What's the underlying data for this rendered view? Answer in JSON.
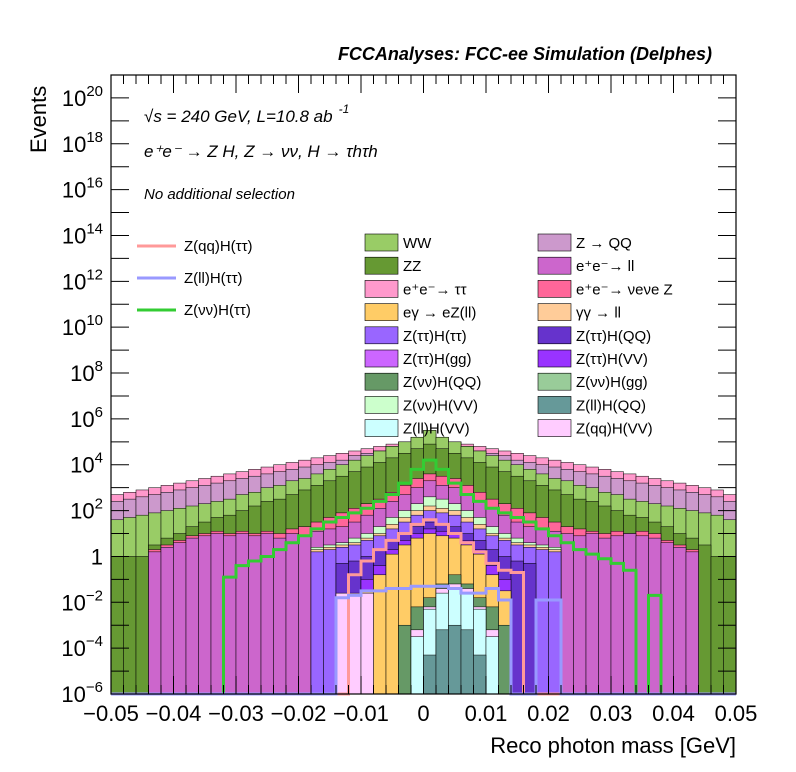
{
  "chart_data": {
    "type": "histogram",
    "header": "FCCAnalyses: FCC-ee Simulation (Delphes)",
    "xlabel": "Reco photon mass [GeV]",
    "ylabel": "Events",
    "xlim": [
      -0.05,
      0.05
    ],
    "ylim": [
      1e-06,
      1e+21
    ],
    "yscale": "log",
    "x_ticks": [
      "−0.05",
      "−0.04",
      "−0.03",
      "−0.02",
      "−0.01",
      "0",
      "0.01",
      "0.02",
      "0.03",
      "0.04",
      "0.05"
    ],
    "y_ticks": [
      {
        "base": "10",
        "exp": "−6"
      },
      {
        "base": "10",
        "exp": "−4"
      },
      {
        "base": "10",
        "exp": "−2"
      },
      {
        "base": "1",
        "exp": ""
      },
      {
        "base": "10",
        "exp": "2"
      },
      {
        "base": "10",
        "exp": "4"
      },
      {
        "base": "10",
        "exp": "6"
      },
      {
        "base": "10",
        "exp": "8"
      },
      {
        "base": "10",
        "exp": "10"
      },
      {
        "base": "10",
        "exp": "12"
      },
      {
        "base": "10",
        "exp": "14"
      },
      {
        "base": "10",
        "exp": "16"
      },
      {
        "base": "10",
        "exp": "18"
      },
      {
        "base": "10",
        "exp": "20"
      }
    ],
    "info_lines": {
      "energy": "√s = 240 GeV, L=10.8 ab",
      "energy_exp": "-1",
      "process": "e⁺e⁻ → Z H, Z → νν, H → τhτh",
      "selection": "No additional selection"
    },
    "signal_legend": [
      {
        "name": "Z(qq)H(ττ)",
        "color": "#ff9999"
      },
      {
        "name": "Z(ll)H(ττ)",
        "color": "#9999ff"
      },
      {
        "name": "Z(νν)H(ττ)",
        "color": "#33cc33"
      }
    ],
    "background_legend": [
      {
        "name": "WW",
        "color": "#99cc66"
      },
      {
        "name": "Z → QQ",
        "color": "#cc99cc"
      },
      {
        "name": "ZZ",
        "color": "#669933"
      },
      {
        "name": "e⁺e⁻→ ll",
        "color": "#cc66cc"
      },
      {
        "name": "e⁺e⁻→ ττ",
        "color": "#ff99cc"
      },
      {
        "name": "e⁺e⁻→ νeνe Z",
        "color": "#ff6699"
      },
      {
        "name": "eγ → eZ(ll)",
        "color": "#ffcc66"
      },
      {
        "name": "γγ → ll",
        "color": "#ffcc99"
      },
      {
        "name": "Z(ττ)H(ττ)",
        "color": "#9966ff"
      },
      {
        "name": "Z(ττ)H(QQ)",
        "color": "#6633cc"
      },
      {
        "name": "Z(ττ)H(gg)",
        "color": "#cc66ff"
      },
      {
        "name": "Z(ττ)H(VV)",
        "color": "#9933ff"
      },
      {
        "name": "Z(νν)H(QQ)",
        "color": "#669966"
      },
      {
        "name": "Z(νν)H(gg)",
        "color": "#99cc99"
      },
      {
        "name": "Z(νν)H(VV)",
        "color": "#ccffcc"
      },
      {
        "name": "Z(ll)H(QQ)",
        "color": "#669999"
      },
      {
        "name": "Z(ll)H(VV)",
        "color": "#ccffff"
      },
      {
        "name": "Z(qq)H(VV)",
        "color": "#ffccff"
      }
    ],
    "bin_edges_range": [
      -0.05,
      0.05
    ],
    "n_bins": 50,
    "stack_layers": [
      {
        "name": "Z(ll)H(QQ)",
        "color": "#669999",
        "log10_top": [
          -6,
          -6,
          -6,
          -6,
          -6,
          -6,
          -6,
          -6,
          -6,
          -6,
          -6,
          -6,
          -6,
          -6,
          -6,
          -6,
          -6,
          -6,
          -6,
          -6,
          -6,
          -6,
          -6,
          -6,
          -6,
          -4.3,
          -3.2,
          -3,
          -3.2,
          -4.3,
          -6,
          -6,
          -6,
          -6,
          -6,
          -6,
          -6,
          -6,
          -6,
          -6,
          -6,
          -6,
          -6,
          -6,
          -6,
          -6,
          -6,
          -6,
          -6,
          -6
        ]
      },
      {
        "name": "Z(ll)H(VV)",
        "color": "#ccffff",
        "log10_top": [
          -6,
          -6,
          -6,
          -6,
          -6,
          -6,
          -6,
          -6,
          -6,
          -6,
          -6,
          -6,
          -6,
          -6,
          -6,
          -6,
          -6,
          -6,
          -6,
          -6,
          -6,
          -6,
          -6,
          -6,
          -3.5,
          -2.3,
          -1.6,
          -1.4,
          -1.6,
          -2.3,
          -3.5,
          -6,
          -6,
          -6,
          -6,
          -6,
          -6,
          -6,
          -6,
          -6,
          -6,
          -6,
          -6,
          -6,
          -6,
          -6,
          -6,
          -6,
          -6,
          -6
        ]
      },
      {
        "name": "Z(qq)H(VV)",
        "color": "#ffccff",
        "log10_top": [
          -6,
          -6,
          -6,
          -6,
          -6,
          -6,
          -6,
          -6,
          -6,
          -6,
          -6,
          -6,
          -6,
          -6,
          -6,
          -6,
          -6,
          -6,
          -1.6,
          -1.6,
          -1.6,
          -6,
          -6,
          -6,
          -3.2,
          -2.2,
          -1.4,
          -1.2,
          -1.4,
          -2.2,
          -3.2,
          -6,
          -6,
          -6,
          -6,
          -6,
          -6,
          -6,
          -6,
          -6,
          -6,
          -6,
          -6,
          -6,
          -6,
          -6,
          -6,
          -6,
          -6,
          -6
        ]
      },
      {
        "name": "Z(νν)H(QQ)",
        "color": "#669966",
        "log10_top": [
          -6,
          -6,
          -6,
          -6,
          -6,
          -6,
          -6,
          -6,
          -6,
          -6,
          -6,
          -6,
          -6,
          -6,
          -6,
          -6,
          -6,
          -6,
          -6,
          -6,
          -6,
          -6,
          -6,
          -3,
          -2.2,
          -1.8,
          -1.2,
          -0.8,
          -1.2,
          -1.8,
          -2.2,
          -3,
          -6,
          -6,
          -6,
          -6,
          -6,
          -6,
          -6,
          -6,
          -6,
          -6,
          -6,
          -6,
          -6,
          -6,
          -6,
          -6,
          -6,
          -6
        ]
      },
      {
        "name": "eγ → eZ(ll)",
        "color": "#ffcc66",
        "log10_top": [
          -6,
          -6,
          -6,
          -6,
          -6,
          -6,
          -6,
          -6,
          -6,
          -6,
          -6,
          -6,
          -6,
          -6,
          -6,
          -6,
          -6,
          -6,
          -6,
          -6,
          -1.5,
          -0.8,
          0.1,
          0.5,
          0.8,
          1.0,
          0.9,
          0.8,
          0.5,
          0.1,
          -0.8,
          -1.5,
          -6,
          -6,
          -6,
          -6,
          -6,
          -6,
          -6,
          -6,
          -6,
          -6,
          -6,
          -6,
          -6,
          -6,
          -6,
          -6,
          -6,
          -6
        ]
      },
      {
        "name": "Z(ττ)H(VV)",
        "color": "#9933ff",
        "log10_top": [
          -6,
          -6,
          -6,
          -6,
          -6,
          -6,
          -6,
          -6,
          -6,
          -6,
          -6,
          -6,
          -6,
          -6,
          -6,
          -6,
          -6,
          -6,
          -6,
          -6,
          -1.0,
          -0.4,
          0.3,
          0.7,
          1.0,
          1.2,
          1.1,
          1.0,
          0.7,
          0.3,
          -0.4,
          -1.0,
          -6,
          -6,
          -6,
          -6,
          -6,
          -6,
          -6,
          -6,
          -6,
          -6,
          -6,
          -6,
          -6,
          -6,
          -6,
          -6,
          -6,
          -6
        ]
      },
      {
        "name": "Z(ττ)H(QQ)",
        "color": "#6633cc",
        "log10_top": [
          -6,
          -6,
          -6,
          -6,
          -6,
          -6,
          -6,
          -6,
          -6,
          -6,
          -6,
          -6,
          -6,
          -6,
          -6,
          -6,
          -6,
          -6,
          -0.3,
          -0.2,
          0,
          0.3,
          0.7,
          1.0,
          1.3,
          1.5,
          1.4,
          1.3,
          1.0,
          0.7,
          0.3,
          0,
          -0.2,
          -0.3,
          -6,
          -6,
          -6,
          -6,
          -6,
          -6,
          -6,
          -6,
          -6,
          -6,
          -6,
          -6,
          -6,
          -6,
          -6,
          -6
        ]
      },
      {
        "name": "Z(ττ)H(ττ)",
        "color": "#9966ff",
        "log10_top": [
          -6,
          -6,
          -6,
          -6,
          -6,
          -6,
          -6,
          -6,
          -6,
          -6,
          -6,
          -6,
          -6,
          -6,
          -6,
          -6,
          0.2,
          0.3,
          0.4,
          0.5,
          0.7,
          0.9,
          1.2,
          1.5,
          1.8,
          2.0,
          1.9,
          1.8,
          1.5,
          1.2,
          0.9,
          0.7,
          0.5,
          0.4,
          0.3,
          0.2,
          -6,
          -6,
          -6,
          -6,
          -6,
          -6,
          -6,
          -6,
          -6,
          -6,
          -6,
          -6,
          -6,
          -6
        ]
      },
      {
        "name": "γγ → ll",
        "color": "#ffcc99",
        "log10_top": [
          -6,
          -6,
          -6,
          -6,
          -6,
          -6,
          -6,
          -6,
          -6,
          -6,
          -6,
          -6,
          -6,
          -6,
          -6,
          -6,
          0.3,
          0.4,
          0.5,
          0.6,
          0.8,
          1.0,
          1.4,
          1.7,
          2.0,
          2.2,
          2.1,
          2.0,
          1.7,
          1.4,
          1.0,
          0.8,
          0.6,
          0.5,
          0.4,
          0.3,
          -6,
          -6,
          -6,
          -6,
          -6,
          -6,
          -6,
          -6,
          -6,
          -6,
          -6,
          -6,
          -6,
          -6
        ]
      },
      {
        "name": "Z(νν)H(VV)",
        "color": "#ccffcc",
        "log10_top": [
          -6,
          -6,
          -6,
          -6,
          -6,
          -6,
          -6,
          -6,
          -6,
          -6,
          -6,
          -6,
          -6,
          -6,
          -6,
          -6,
          0.4,
          0.5,
          0.6,
          0.8,
          1.0,
          1.3,
          1.7,
          2.0,
          2.3,
          2.6,
          2.5,
          2.3,
          2.0,
          1.7,
          1.3,
          1.0,
          0.8,
          0.6,
          0.5,
          0.4,
          -6,
          -6,
          -6,
          -6,
          -6,
          -6,
          -6,
          -6,
          -6,
          -6,
          -6,
          -6,
          -6,
          -6
        ]
      },
      {
        "name": "e⁺e⁻→ ll",
        "color": "#cc66cc",
        "log10_top": [
          -6,
          -6,
          -6,
          0.2,
          0.4,
          0.6,
          0.8,
          0.9,
          1.0,
          0.9,
          1.0,
          0.9,
          1.0,
          0.8,
          1.0,
          0.9,
          1.1,
          1.2,
          1.3,
          1.5,
          1.8,
          2.1,
          2.4,
          2.7,
          3.0,
          3.3,
          3.1,
          3.0,
          2.7,
          2.4,
          2.1,
          1.8,
          1.5,
          1.3,
          1.2,
          1.1,
          1.0,
          0.9,
          1.0,
          0.8,
          0.9,
          1.0,
          0.9,
          0.8,
          0.6,
          0.4,
          0.2,
          -6,
          -6,
          -6
        ]
      },
      {
        "name": "e⁺e⁻→ νeνe Z",
        "color": "#ff6699",
        "log10_top": [
          -6,
          -6,
          -6,
          0.3,
          0.5,
          0.7,
          0.9,
          1.0,
          1.1,
          1.0,
          1.1,
          1.0,
          1.1,
          1.0,
          1.2,
          1.3,
          1.5,
          1.7,
          1.9,
          2.1,
          2.3,
          2.5,
          2.8,
          3.1,
          3.4,
          3.6,
          3.5,
          3.4,
          3.1,
          2.8,
          2.5,
          2.3,
          2.1,
          1.9,
          1.7,
          1.5,
          1.3,
          1.2,
          1.1,
          1.0,
          1.1,
          1.0,
          1.1,
          1.0,
          0.7,
          0.5,
          0.3,
          -6,
          -6,
          -6
        ]
      },
      {
        "name": "ZZ",
        "color": "#669933",
        "log10_top": [
          0,
          0,
          0,
          0.5,
          0.8,
          1.0,
          1.3,
          1.5,
          1.7,
          1.8,
          2.0,
          2.2,
          2.4,
          2.5,
          2.7,
          2.9,
          3.1,
          3.3,
          3.5,
          3.7,
          3.9,
          4.1,
          4.3,
          4.5,
          4.7,
          4.9,
          4.7,
          4.5,
          4.3,
          4.1,
          3.9,
          3.7,
          3.5,
          3.3,
          3.1,
          2.9,
          2.7,
          2.5,
          2.4,
          2.2,
          2.0,
          1.8,
          1.7,
          1.5,
          1.3,
          1.0,
          0.8,
          0.5,
          0,
          0
        ]
      },
      {
        "name": "WW",
        "color": "#99cc66",
        "log10_top": [
          1.6,
          1.7,
          1.8,
          1.9,
          2.0,
          2.1,
          2.2,
          2.3,
          2.4,
          2.5,
          2.7,
          2.8,
          3.0,
          3.1,
          3.3,
          3.4,
          3.6,
          3.8,
          4.0,
          4.2,
          4.4,
          4.6,
          4.8,
          5.0,
          5.2,
          5.5,
          5.2,
          5.0,
          4.8,
          4.6,
          4.4,
          4.2,
          4.0,
          3.8,
          3.6,
          3.4,
          3.3,
          3.1,
          3.0,
          2.8,
          2.7,
          2.5,
          2.4,
          2.3,
          2.2,
          2.1,
          2.0,
          1.9,
          1.8,
          1.6
        ]
      },
      {
        "name": "Z → QQ",
        "color": "#cc99cc",
        "log10_top": [
          2.4,
          2.5,
          2.6,
          2.7,
          2.8,
          2.9,
          3.0,
          3.1,
          3.2,
          3.3,
          3.4,
          3.5,
          3.6,
          3.7,
          3.8,
          3.9,
          4.0,
          4.1,
          4.2,
          4.4,
          4.5,
          4.6,
          4.8,
          5.0,
          5.2,
          5.5,
          5.2,
          5.0,
          4.8,
          4.6,
          4.5,
          4.4,
          4.2,
          4.1,
          4.0,
          3.9,
          3.8,
          3.7,
          3.6,
          3.5,
          3.4,
          3.3,
          3.2,
          3.1,
          3.0,
          2.9,
          2.8,
          2.7,
          2.6,
          2.4
        ]
      },
      {
        "name": "e⁺e⁻→ ττ",
        "color": "#ff99cc",
        "log10_top": [
          2.7,
          2.8,
          2.9,
          3.0,
          3.1,
          3.2,
          3.3,
          3.4,
          3.5,
          3.6,
          3.7,
          3.8,
          3.9,
          4.0,
          4.1,
          4.2,
          4.3,
          4.4,
          4.5,
          4.6,
          4.7,
          4.8,
          4.9,
          5.0,
          5.1,
          5.2,
          5.1,
          5.0,
          4.9,
          4.8,
          4.7,
          4.6,
          4.5,
          4.4,
          4.3,
          4.2,
          4.1,
          4.0,
          3.9,
          3.8,
          3.7,
          3.6,
          3.5,
          3.4,
          3.3,
          3.2,
          3.1,
          3.0,
          2.9,
          2.7
        ]
      }
    ],
    "signal_lines": [
      {
        "name": "Z(νν)H(ττ)",
        "color": "#33cc33",
        "log10_value": [
          -6,
          -6,
          -6,
          -6,
          -6,
          -6,
          -6,
          -6,
          -6,
          -0.9,
          -0.4,
          -0.2,
          0,
          0.3,
          0.6,
          0.9,
          1.2,
          1.5,
          1.7,
          1.9,
          2.1,
          2.4,
          2.7,
          3.2,
          3.8,
          4.2,
          3.8,
          3.2,
          2.7,
          2.4,
          2.1,
          1.9,
          1.7,
          1.5,
          1.2,
          0.9,
          0.6,
          0.3,
          0.1,
          -0.1,
          -0.3,
          -0.6,
          -6,
          -1.7,
          -6,
          -6,
          -6,
          -6,
          -6,
          -6
        ]
      },
      {
        "name": "Z(qq)H(ττ)",
        "color": "#ff9999",
        "log10_value": [
          -6,
          -6,
          -6,
          -6,
          -6,
          -6,
          -6,
          -6,
          -6,
          -6,
          -6,
          -6,
          -6,
          -6,
          -6,
          -6,
          -6,
          -6,
          -6,
          -0.8,
          -0.2,
          0.3,
          0.7,
          1.0,
          1.4,
          1.6,
          1.4,
          1.0,
          0.6,
          0.2,
          -0.3,
          -0.6,
          -0.7,
          -6,
          -6,
          -6,
          -6,
          -6,
          -6,
          -6,
          -6,
          -6,
          -6,
          -6,
          -6,
          -6,
          -6,
          -6,
          -6,
          -6
        ]
      },
      {
        "name": "Z(ll)H(ττ)",
        "color": "#9999ff",
        "log10_value": [
          -6,
          -6,
          -6,
          -6,
          -6,
          -6,
          -6,
          -6,
          -6,
          -6,
          -6,
          -6,
          -6,
          -6,
          -6,
          -6,
          -6,
          -6,
          -1.8,
          -1.7,
          -1.5,
          -1.5,
          -1.4,
          -1.4,
          -1.3,
          -1.3,
          -1.3,
          -1.4,
          -1.6,
          -1.6,
          -1.4,
          -1.9,
          -6,
          -6,
          -1.9,
          -1.9,
          -6,
          -6,
          -6,
          -6,
          -6,
          -6,
          -6,
          -6,
          -6,
          -6,
          -6,
          -6,
          -6,
          -6
        ]
      }
    ]
  }
}
